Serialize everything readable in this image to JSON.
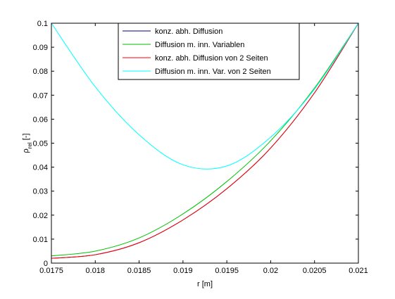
{
  "chart_data": {
    "type": "line",
    "title": "",
    "xlabel": "r [m]",
    "ylabel_base": "ρ",
    "ylabel_sub": "rel",
    "ylabel_suffix": " [-]",
    "xlim": [
      0.0175,
      0.021
    ],
    "ylim": [
      0,
      0.1
    ],
    "xticks": [
      0.0175,
      0.018,
      0.0185,
      0.019,
      0.0195,
      0.02,
      0.0205,
      0.021
    ],
    "xtick_labels": [
      "0.0175",
      "0.018",
      "0.0185",
      "0.019",
      "0.0195",
      "0.02",
      "0.0205",
      "0.021"
    ],
    "yticks": [
      0,
      0.01,
      0.02,
      0.03,
      0.04,
      0.05,
      0.06,
      0.07,
      0.08,
      0.09,
      0.1
    ],
    "ytick_labels": [
      "0",
      "0.01",
      "0.02",
      "0.03",
      "0.04",
      "0.05",
      "0.06",
      "0.07",
      "0.08",
      "0.09",
      "0.1"
    ],
    "grid": false,
    "legend_position": "top-center",
    "x": [
      0.0175,
      0.018,
      0.0185,
      0.019,
      0.0195,
      0.02,
      0.0205,
      0.021
    ],
    "series": [
      {
        "name": "konz. abh. Diffusion",
        "color": "#00007f",
        "values": [
          0.002,
          0.0035,
          0.0085,
          0.018,
          0.031,
          0.048,
          0.071,
          0.1
        ]
      },
      {
        "name": "Diffusion m. inn. Variablen",
        "color": "#00c000",
        "values": [
          0.003,
          0.005,
          0.0105,
          0.0205,
          0.034,
          0.051,
          0.073,
          0.1
        ]
      },
      {
        "name": "konz. abh. Diffusion von 2 Seiten",
        "color": "#ff0000",
        "values": [
          0.002,
          0.0035,
          0.0085,
          0.018,
          0.031,
          0.048,
          0.071,
          0.1
        ]
      },
      {
        "name": "Diffusion m. inn. Var. von 2 Seiten",
        "color": "#00ffff",
        "values": [
          0.1,
          0.0735,
          0.0535,
          0.041,
          0.0405,
          0.0525,
          0.0725,
          0.1
        ]
      }
    ]
  }
}
